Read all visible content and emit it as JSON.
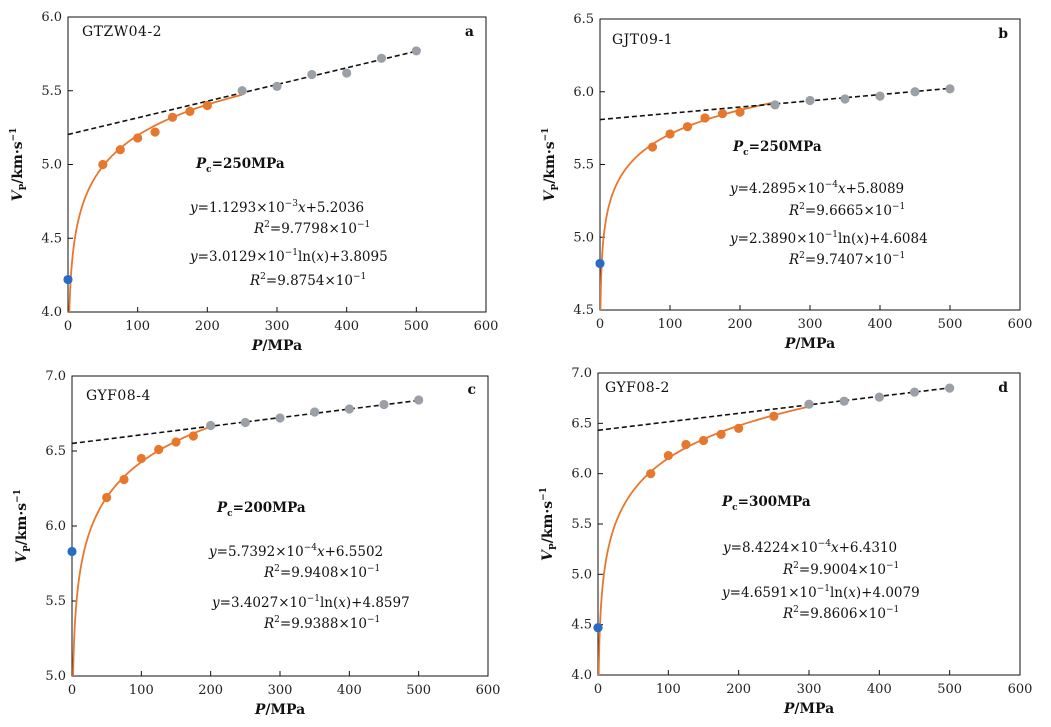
{
  "figure": {
    "axis_labels": {
      "x": {
        "main": "P",
        "unit": "/MPa"
      },
      "y": {
        "main": "V",
        "sub": "P",
        "unit": "/km·s",
        "sup": "−1"
      }
    }
  },
  "colors": {
    "fit_curve": "#e8772e",
    "low_points": "#e8772e",
    "high_points": "#9aa0a6",
    "zero_point": "#2a6bc4",
    "linear_fit": "#111111",
    "axes": "#111111"
  },
  "chart_data": [
    {
      "type": "scatter",
      "panel": "a",
      "sample": "GTZW04-2",
      "xlabel": "P/MPa",
      "ylabel": "VP/km·s−1",
      "xlim": [
        0,
        600
      ],
      "ylim": [
        4.0,
        6.0
      ],
      "xticks": [
        0,
        100,
        200,
        300,
        400,
        500,
        600
      ],
      "yticks": [
        4.0,
        4.5,
        5.0,
        5.5,
        6.0
      ],
      "grid": false,
      "zero_point": {
        "x": 0,
        "y": 4.22
      },
      "series": [
        {
          "x": [
            50,
            75,
            100,
            125,
            150,
            175,
            200
          ],
          "y": [
            5.0,
            5.1,
            5.18,
            5.22,
            5.32,
            5.36,
            5.4
          ]
        },
        {
          "x": [
            250,
            300,
            350,
            400,
            450,
            500
          ],
          "y": [
            5.5,
            5.53,
            5.61,
            5.62,
            5.72,
            5.77
          ]
        }
      ],
      "linear_fit": {
        "slope": 0.0011293,
        "intercept": 5.2036,
        "x_range": [
          0,
          500
        ]
      },
      "log_fit": {
        "a": 0.30129,
        "b": 3.8095,
        "x_range": [
          0.5,
          250
        ]
      },
      "annotations": {
        "pc": {
          "P": "P",
          "sub": "c",
          "rest": "=250MPa"
        },
        "linear_eq": {
          "pre": "y",
          "mid": "=1.1293×10",
          "sup": "−3",
          "x": "x",
          "post": "+5.2036"
        },
        "linear_r2": {
          "R": "R",
          "sup": "2",
          "post": "=9.7798×10",
          "sup2": "−1"
        },
        "log_eq": {
          "pre": "y",
          "mid": "=3.0129×10",
          "sup": "−1",
          "ln": "ln(",
          "x": "x",
          "post": ")+3.8095"
        },
        "log_r2": {
          "R": "R",
          "sup": "2",
          "post": "=9.8754×10",
          "sup2": "−1"
        }
      }
    },
    {
      "type": "scatter",
      "panel": "b",
      "sample": "GJT09-1",
      "xlabel": "P/MPa",
      "ylabel": "VP/km·s−1",
      "xlim": [
        0,
        600
      ],
      "ylim": [
        4.5,
        6.5
      ],
      "xticks": [
        0,
        100,
        200,
        300,
        400,
        500,
        600
      ],
      "yticks": [
        4.5,
        5.0,
        5.5,
        6.0,
        6.5
      ],
      "grid": false,
      "zero_point": {
        "x": 0,
        "y": 4.82
      },
      "series": [
        {
          "x": [
            75,
            100,
            125,
            150,
            175,
            200
          ],
          "y": [
            5.62,
            5.71,
            5.76,
            5.82,
            5.85,
            5.86
          ]
        },
        {
          "x": [
            250,
            300,
            350,
            400,
            450,
            500
          ],
          "y": [
            5.91,
            5.94,
            5.95,
            5.97,
            6.0,
            6.02
          ]
        }
      ],
      "linear_fit": {
        "slope": 0.00042895,
        "intercept": 5.8089,
        "x_range": [
          0,
          500
        ]
      },
      "log_fit": {
        "a": 0.2389,
        "b": 4.6084,
        "x_range": [
          0.5,
          250
        ]
      },
      "annotations": {
        "pc": {
          "P": "P",
          "sub": "c",
          "rest": "=250MPa"
        },
        "linear_eq": {
          "pre": "y",
          "mid": "=4.2895×10",
          "sup": "−4",
          "x": "x",
          "post": "+5.8089"
        },
        "linear_r2": {
          "R": "R",
          "sup": "2",
          "post": "=9.6665×10",
          "sup2": "−1"
        },
        "log_eq": {
          "pre": "y",
          "mid": "=2.3890×10",
          "sup": "−1",
          "ln": "ln(",
          "x": "x",
          "post": ")+4.6084"
        },
        "log_r2": {
          "R": "R",
          "sup": "2",
          "post": "=9.7407×10",
          "sup2": "−1"
        }
      }
    },
    {
      "type": "scatter",
      "panel": "c",
      "sample": "GYF08-4",
      "xlabel": "P/MPa",
      "ylabel": "VP/km·s−1",
      "xlim": [
        0,
        600
      ],
      "ylim": [
        5.0,
        7.0
      ],
      "xticks": [
        0,
        100,
        200,
        300,
        400,
        500,
        600
      ],
      "yticks": [
        5.0,
        5.5,
        6.0,
        6.5,
        7.0
      ],
      "grid": false,
      "zero_point": {
        "x": 0,
        "y": 5.83
      },
      "series": [
        {
          "x": [
            50,
            75,
            100,
            125,
            150,
            175
          ],
          "y": [
            6.19,
            6.31,
            6.45,
            6.51,
            6.56,
            6.6
          ]
        },
        {
          "x": [
            200,
            250,
            300,
            350,
            400,
            450,
            500
          ],
          "y": [
            6.67,
            6.69,
            6.72,
            6.76,
            6.78,
            6.81,
            6.84
          ]
        }
      ],
      "linear_fit": {
        "slope": 0.00057392,
        "intercept": 6.5502,
        "x_range": [
          0,
          500
        ]
      },
      "log_fit": {
        "a": 0.34027,
        "b": 4.8597,
        "x_range": [
          0.5,
          200
        ]
      },
      "annotations": {
        "pc": {
          "P": "P",
          "sub": "c",
          "rest": "=200MPa"
        },
        "linear_eq": {
          "pre": "y",
          "mid": "=5.7392×10",
          "sup": "−4",
          "x": "x",
          "post": "+6.5502"
        },
        "linear_r2": {
          "R": "R",
          "sup": "2",
          "post": "=9.9408×10",
          "sup2": "−1"
        },
        "log_eq": {
          "pre": "y",
          "mid": "=3.4027×10",
          "sup": "−1",
          "ln": "ln(",
          "x": "x",
          "post": ")+4.8597"
        },
        "log_r2": {
          "R": "R",
          "sup": "2",
          "post": "=9.9388×10",
          "sup2": "−1"
        }
      }
    },
    {
      "type": "scatter",
      "panel": "d",
      "sample": "GYF08-2",
      "xlabel": "P/MPa",
      "ylabel": "VP/km·s−1",
      "xlim": [
        0,
        600
      ],
      "ylim": [
        4.0,
        7.0
      ],
      "xticks": [
        0,
        100,
        200,
        300,
        400,
        500,
        600
      ],
      "yticks": [
        4.0,
        4.5,
        5.0,
        5.5,
        6.0,
        6.5,
        7.0
      ],
      "grid": false,
      "zero_point": {
        "x": 0,
        "y": 4.47
      },
      "series": [
        {
          "x": [
            75,
            100,
            125,
            150,
            175,
            200,
            250
          ],
          "y": [
            6.0,
            6.18,
            6.29,
            6.33,
            6.39,
            6.45,
            6.57
          ]
        },
        {
          "x": [
            300,
            350,
            400,
            450,
            500
          ],
          "y": [
            6.69,
            6.72,
            6.76,
            6.81,
            6.85
          ]
        }
      ],
      "linear_fit": {
        "slope": 0.00084224,
        "intercept": 6.431,
        "x_range": [
          0,
          500
        ]
      },
      "log_fit": {
        "a": 0.46591,
        "b": 4.0079,
        "x_range": [
          0.5,
          300
        ]
      },
      "annotations": {
        "pc": {
          "P": "P",
          "sub": "c",
          "rest": "=300MPa"
        },
        "linear_eq": {
          "pre": "y",
          "mid": "=8.4224×10",
          "sup": "−4",
          "x": "x",
          "post": "+6.4310"
        },
        "linear_r2": {
          "R": "R",
          "sup": "2",
          "post": "=9.9004×10",
          "sup2": "−1"
        },
        "log_eq": {
          "pre": "y",
          "mid": "=4.6591×10",
          "sup": "−1",
          "ln": "ln(",
          "x": "x",
          "post": ")+4.0079"
        },
        "log_r2": {
          "R": "R",
          "sup": "2",
          "post": "=9.8606×10",
          "sup2": "−1"
        }
      }
    }
  ]
}
